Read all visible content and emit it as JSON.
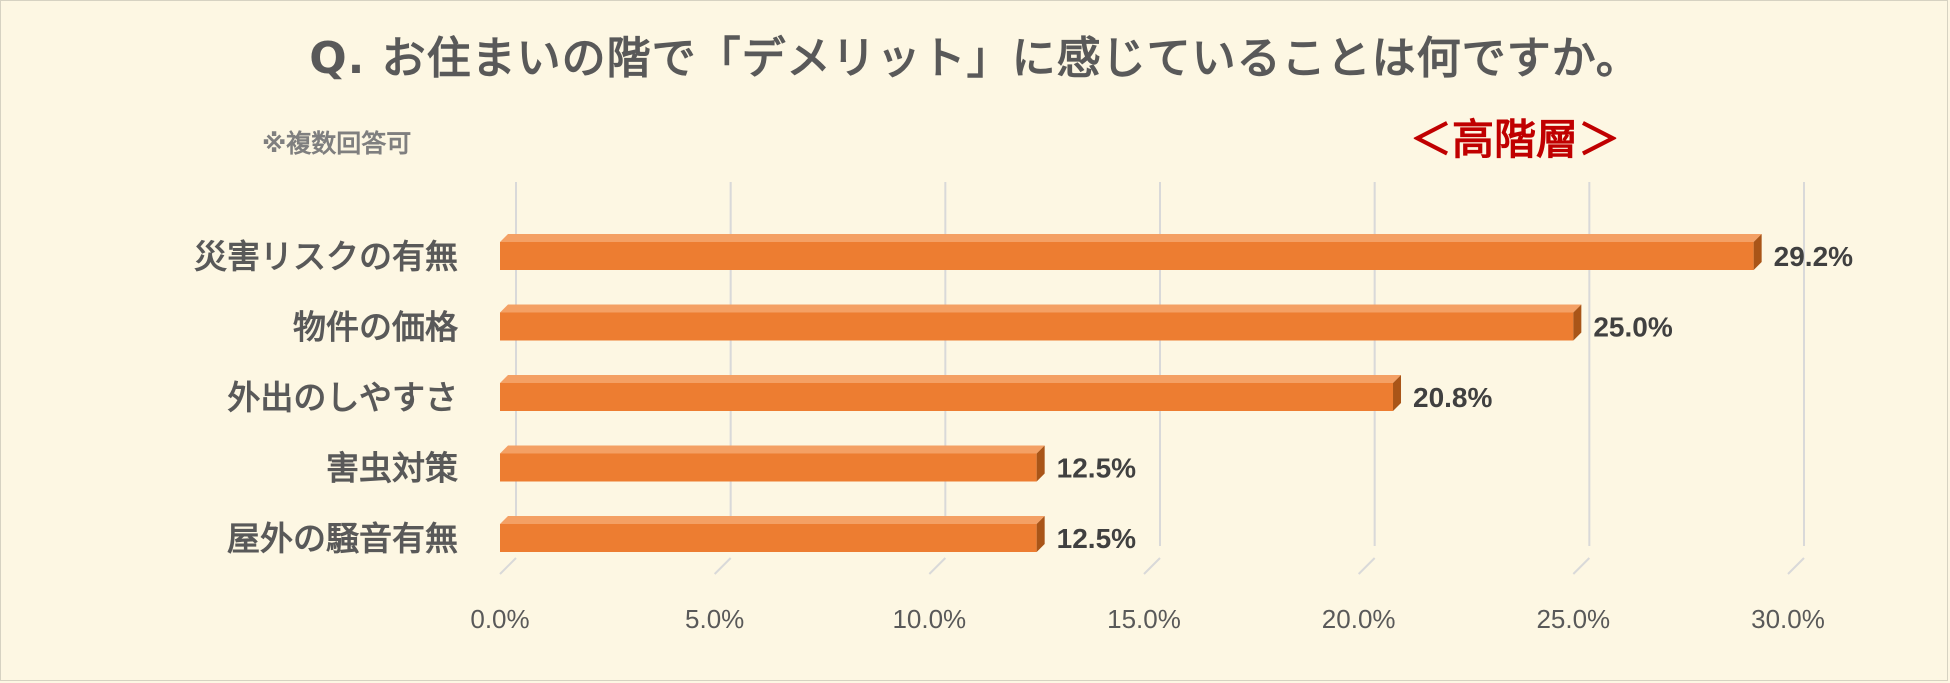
{
  "title": "Q. お住まいの階で「デメリット」に感じていることは何ですか。",
  "note": "※複数回答可",
  "subtitle": "＜高階層＞",
  "colors": {
    "background": "#fdf7e3",
    "bar_front": "#ed7d31",
    "bar_top": "#f4a064",
    "bar_side": "#a95518",
    "grid": "#d9d9d9",
    "title_text": "#595959",
    "subtitle_text": "#c00000"
  },
  "chart_data": {
    "type": "bar",
    "orientation": "horizontal",
    "style": "3d",
    "categories": [
      "災害リスクの有無",
      "物件の価格",
      "外出のしやすさ",
      "害虫対策",
      "屋外の騒音有無"
    ],
    "values": [
      29.2,
      25.0,
      20.8,
      12.5,
      12.5
    ],
    "value_labels": [
      "29.2%",
      "25.0%",
      "20.8%",
      "12.5%",
      "12.5%"
    ],
    "xlim": [
      0,
      30
    ],
    "x_ticks": [
      0,
      5,
      10,
      15,
      20,
      25,
      30
    ],
    "x_tick_labels": [
      "0.0%",
      "5.0%",
      "10.0%",
      "15.0%",
      "20.0%",
      "25.0%",
      "30.0%"
    ],
    "grid": true,
    "legend": "none"
  }
}
